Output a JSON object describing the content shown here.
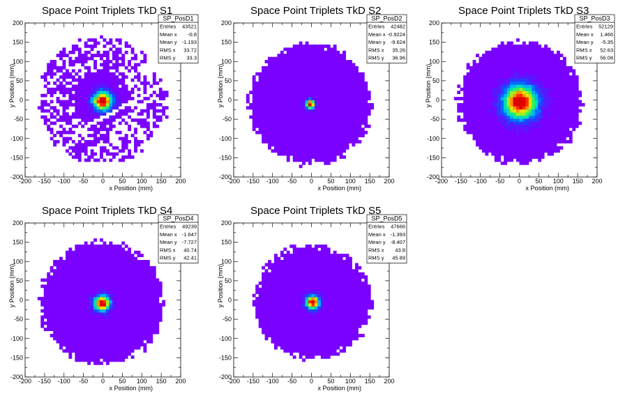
{
  "chart_data": [
    {
      "type": "heatmap",
      "title": "Space Point Triplets TkD S1",
      "xlabel": "x Position (mm)",
      "ylabel": "y Position (mm)",
      "xlim": [
        -200,
        200
      ],
      "ylim": [
        -200,
        200
      ],
      "xticks": [
        -200,
        -150,
        -100,
        -50,
        0,
        50,
        100,
        150,
        200
      ],
      "yticks": [
        -200,
        -150,
        -100,
        -50,
        0,
        50,
        100,
        150,
        200
      ],
      "stats": {
        "name": "SP_PosD1",
        "rows": [
          {
            "key": "Entries",
            "value": "43521"
          },
          {
            "key": "Mean x",
            "value": "-0.8"
          },
          {
            "key": "Mean y",
            "value": "-1.193"
          },
          {
            "key": "RMS x",
            "value": "33.72"
          },
          {
            "key": "RMS y",
            "value": "33.3"
          }
        ]
      },
      "distribution": {
        "center_x": -1,
        "center_y": -2,
        "core_sigma": 17,
        "radius": 165,
        "fill": "gapped"
      }
    },
    {
      "type": "heatmap",
      "title": "Space Point Triplets TkD S2",
      "xlabel": "x Position (mm)",
      "ylabel": "y Position (mm)",
      "xlim": [
        -200,
        200
      ],
      "ylim": [
        -200,
        200
      ],
      "xticks": [
        -200,
        -150,
        -100,
        -50,
        0,
        50,
        100,
        150,
        200
      ],
      "yticks": [
        -200,
        -150,
        -100,
        -50,
        0,
        50,
        100,
        150,
        200
      ],
      "stats": {
        "name": "SP_PosD2",
        "rows": [
          {
            "key": "Entries",
            "value": "42482"
          },
          {
            "key": "Mean x",
            "value": "-0.9224"
          },
          {
            "key": "Mean y",
            "value": "-9.624"
          },
          {
            "key": "RMS x",
            "value": "35.26"
          },
          {
            "key": "RMS y",
            "value": "36.96"
          }
        ]
      },
      "distribution": {
        "center_x": -3,
        "center_y": -10,
        "core_sigma": 8,
        "radius": 158,
        "fill": "full"
      }
    },
    {
      "type": "heatmap",
      "title": "Space Point Triplets TkD S3",
      "xlabel": "x Position (mm)",
      "ylabel": "y Position (mm)",
      "xlim": [
        -200,
        200
      ],
      "ylim": [
        -200,
        200
      ],
      "xticks": [
        -200,
        -150,
        -100,
        -50,
        0,
        50,
        100,
        150,
        200
      ],
      "yticks": [
        -200,
        -150,
        -100,
        -50,
        0,
        50,
        100,
        150,
        200
      ],
      "stats": {
        "name": "SP_PosD3",
        "rows": [
          {
            "key": "Entries",
            "value": "52129"
          },
          {
            "key": "Mean x",
            "value": "1.466"
          },
          {
            "key": "Mean y",
            "value": "-5.35"
          },
          {
            "key": "RMS x",
            "value": "52.63"
          },
          {
            "key": "RMS y",
            "value": "56.08"
          }
        ]
      },
      "distribution": {
        "center_x": 2,
        "center_y": -5,
        "core_sigma": 30,
        "radius": 160,
        "fill": "full"
      }
    },
    {
      "type": "heatmap",
      "title": "Space Point Triplets TkD S4",
      "xlabel": "x Position (mm)",
      "ylabel": "y Position (mm)",
      "xlim": [
        -200,
        200
      ],
      "ylim": [
        -200,
        200
      ],
      "xticks": [
        -200,
        -150,
        -100,
        -50,
        0,
        50,
        100,
        150,
        200
      ],
      "yticks": [
        -200,
        -150,
        -100,
        -50,
        0,
        50,
        100,
        150,
        200
      ],
      "stats": {
        "name": "SP_PosD4",
        "rows": [
          {
            "key": "Entries",
            "value": "49239"
          },
          {
            "key": "Mean x",
            "value": "-1.647"
          },
          {
            "key": "Mean y",
            "value": "-7.727"
          },
          {
            "key": "RMS x",
            "value": "40.74"
          },
          {
            "key": "RMS y",
            "value": "42.41"
          }
        ]
      },
      "distribution": {
        "center_x": -2,
        "center_y": -8,
        "core_sigma": 14,
        "radius": 160,
        "fill": "full"
      }
    },
    {
      "type": "heatmap",
      "title": "Space Point Triplets TkD S5",
      "xlabel": "x Position (mm)",
      "ylabel": "y Position (mm)",
      "xlim": [
        -200,
        200
      ],
      "ylim": [
        -200,
        200
      ],
      "xticks": [
        -200,
        -150,
        -100,
        -50,
        0,
        50,
        100,
        150,
        200
      ],
      "yticks": [
        -200,
        -150,
        -100,
        -50,
        0,
        50,
        100,
        150,
        200
      ],
      "stats": {
        "name": "SP_PosD5",
        "rows": [
          {
            "key": "Entries",
            "value": "47666"
          },
          {
            "key": "Mean x",
            "value": "-1.393"
          },
          {
            "key": "Mean y",
            "value": "-8.407"
          },
          {
            "key": "RMS x",
            "value": "43.8"
          },
          {
            "key": "RMS y",
            "value": "45.89"
          }
        ]
      },
      "distribution": {
        "center_x": 3,
        "center_y": -6,
        "core_sigma": 12,
        "radius": 150,
        "fill": "full"
      }
    }
  ],
  "colors": {
    "background": "#ffffff",
    "frame": "#000000",
    "palette": [
      "#7a00ff",
      "#5a16ff",
      "#2a3cff",
      "#0070ff",
      "#00b4f0",
      "#00e0b0",
      "#30f060",
      "#a0f020",
      "#f0e000",
      "#ff9000",
      "#ff3000",
      "#e00000"
    ]
  }
}
